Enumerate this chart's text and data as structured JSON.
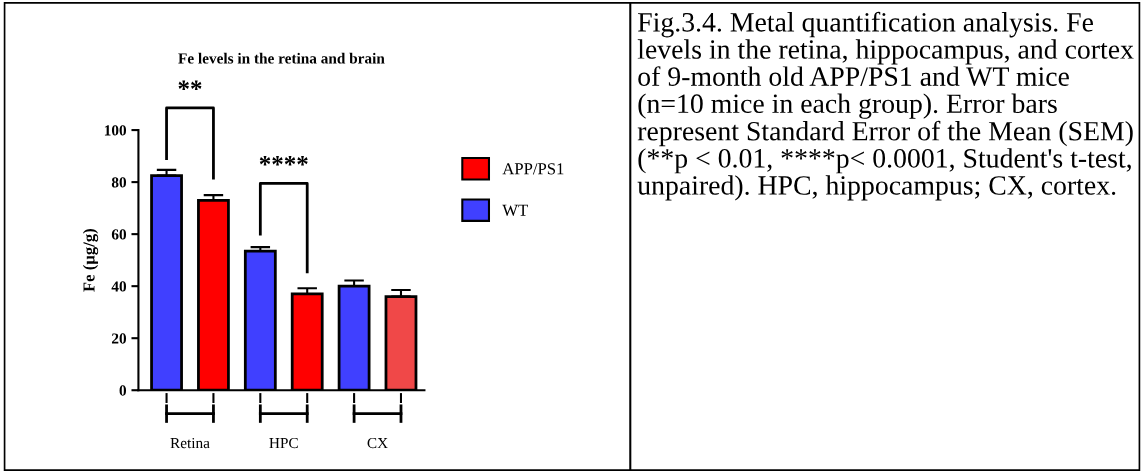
{
  "chart_data": {
    "type": "bar",
    "title": "Fe levels in the retina and brain",
    "ylabel": "Fe (µg/g)",
    "categories": [
      "Retina",
      "HPC",
      "CX"
    ],
    "series": [
      {
        "name": "WT",
        "color": "#4040ff",
        "colors": [
          "#4040ff",
          "#4040ff",
          "#4040ff"
        ],
        "values": [
          82.5,
          53.5,
          40
        ],
        "errors": [
          2.2,
          1.5,
          2.2
        ]
      },
      {
        "name": "APP/PS1",
        "color": "#ff0000",
        "colors": [
          "#ff0000",
          "#ff0000",
          "#f04848"
        ],
        "values": [
          73,
          37,
          36
        ],
        "errors": [
          2,
          2.2,
          2.5
        ]
      }
    ],
    "ylim": [
      0,
      100
    ],
    "yticks": [
      0,
      20,
      40,
      60,
      80,
      100
    ],
    "grid": false,
    "legend": "right",
    "annotations": [
      "**",
      "****",
      "Fig.3.4. Metal quantification analysis. Fe levels in the retina, hippocampus, and cortex of 9-month old APP/PS1 and WT mice (n=10 mice in each group). Error bars represent Standard Error of the Mean (SEM) (**p < 0.01, ****p< 0.0001, Student's t-test, unpaired). HPC, hippocampus; CX, cortex."
    ]
  }
}
